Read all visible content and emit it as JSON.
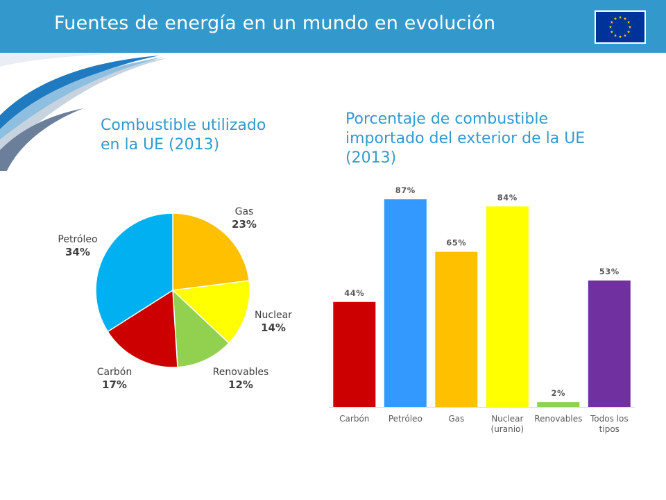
{
  "header": {
    "title": "Fuentes de energía en un mundo en evolución",
    "brand_color": "#3399cc"
  },
  "pie_title": "Combustible utilizado\nen la UE (2013)",
  "bar_title": "Porcentaje de combustible\nimportado del exterior de la UE\n(2013)",
  "flag_icon": "eu-flag-icon",
  "chart_data": [
    {
      "type": "pie",
      "title": "Combustible utilizado en la UE (2013)",
      "slices": [
        {
          "label": "Gas",
          "value": 23,
          "value_label": "23%",
          "color": "#ffc000"
        },
        {
          "label": "Nuclear",
          "value": 14,
          "value_label": "14%",
          "color": "#ffff00"
        },
        {
          "label": "Renovables",
          "value": 12,
          "value_label": "12%",
          "color": "#92d050"
        },
        {
          "label": "Carbón",
          "value": 17,
          "value_label": "17%",
          "color": "#cc0000"
        },
        {
          "label": "Petróleo",
          "value": 34,
          "value_label": "34%",
          "color": "#00b0f0"
        }
      ],
      "start": "12 o'clock",
      "direction": "clockwise"
    },
    {
      "type": "bar",
      "title": "Porcentaje de combustible importado del exterior de la UE (2013)",
      "categories": [
        "Carbón",
        "Petróleo",
        "Gas",
        "Nuclear (uranio)",
        "Renovables",
        "Todos los tipos"
      ],
      "tick_labels": [
        [
          "Carbón"
        ],
        [
          "Petróleo"
        ],
        [
          "Gas"
        ],
        [
          "Nuclear",
          "(uranio)"
        ],
        [
          "Renovables"
        ],
        [
          "Todos los",
          "tipos"
        ]
      ],
      "values": [
        44,
        87,
        65,
        84,
        2,
        53
      ],
      "value_labels": [
        "44%",
        "87%",
        "65%",
        "84%",
        "2%",
        "53%"
      ],
      "colors": [
        "#cc0000",
        "#3399ff",
        "#ffc000",
        "#ffff00",
        "#92d050",
        "#7030a0"
      ],
      "ylim": [
        0,
        100
      ],
      "grid": false,
      "legend": "none"
    }
  ]
}
